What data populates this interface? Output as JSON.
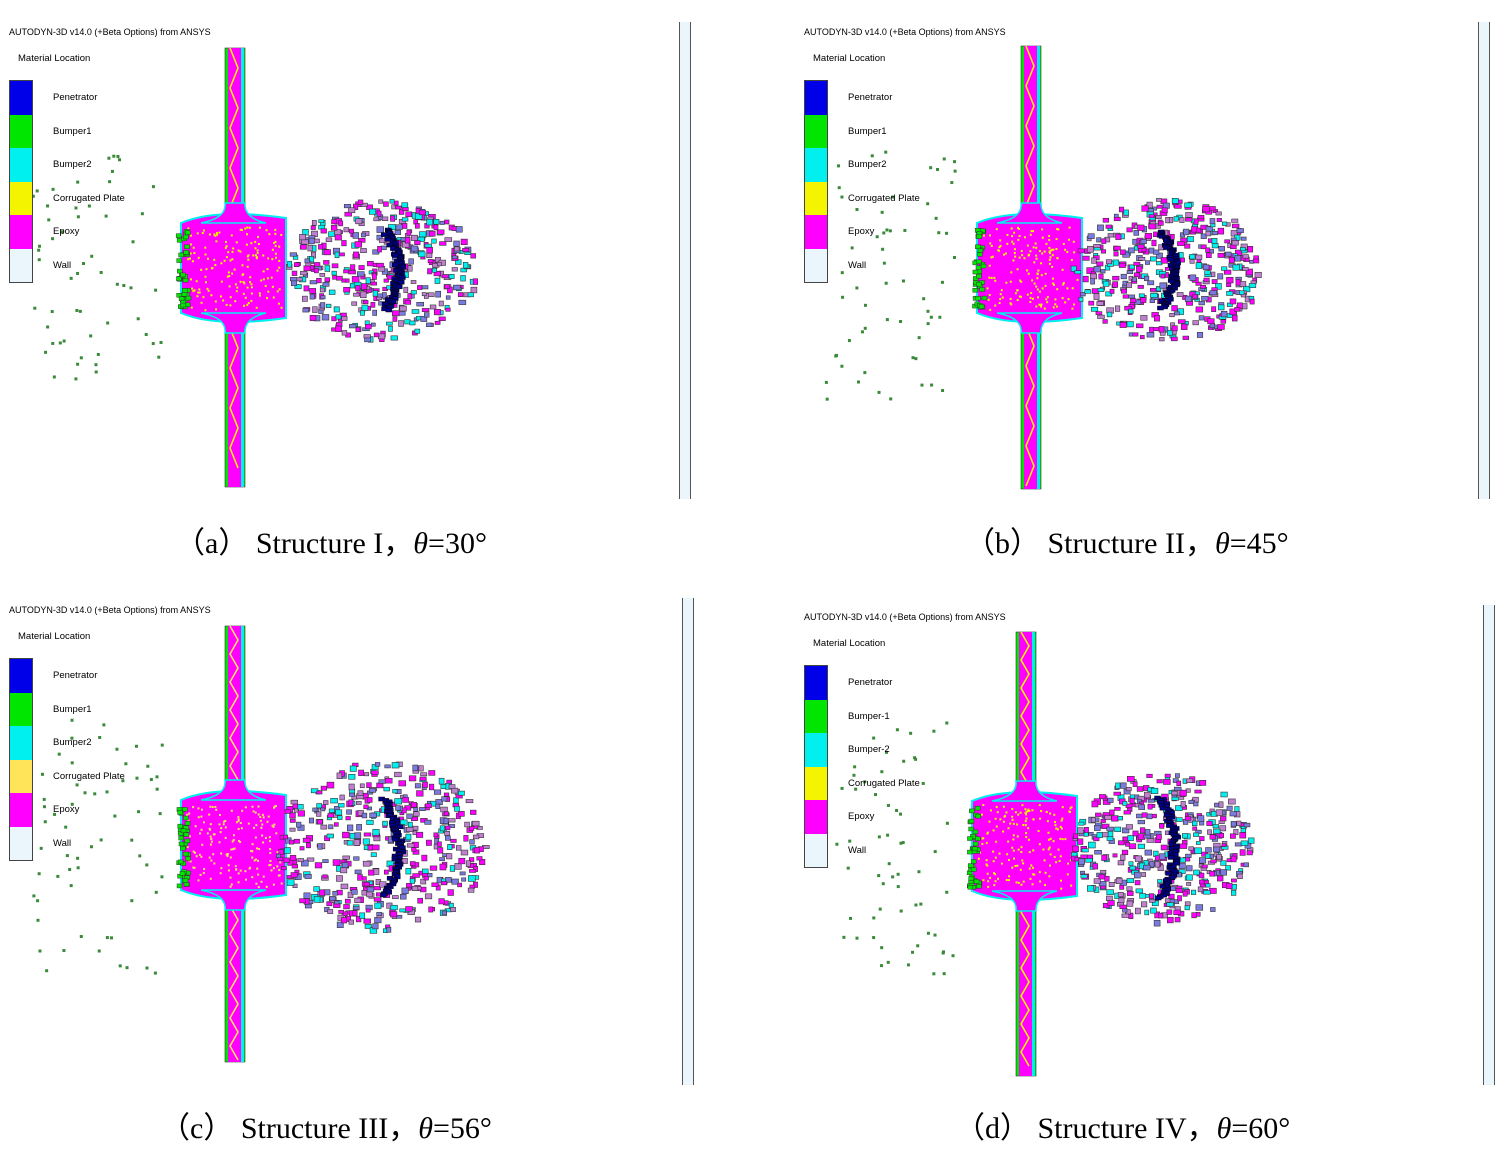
{
  "colors": {
    "penetrator": "#0000e8",
    "bumper1": "#00e600",
    "bumper2": "#00f0f0",
    "corrugated": "#f4f400",
    "corrugated_c": "#ffe45a",
    "epoxy": "#ff00ff",
    "wall": "#eaf6fb"
  },
  "panels": [
    {
      "id": "a",
      "sim_title": "AUTODYN-3D v14.0 (+Beta Options) from ANSYS",
      "legend_title": "Material Location",
      "legend": [
        {
          "label": "Penetrator",
          "color": "penetrator"
        },
        {
          "label": "Bumper1",
          "color": "bumper1"
        },
        {
          "label": "Bumper2",
          "color": "bumper2"
        },
        {
          "label": "Corrugated Plate",
          "color": "corrugated"
        },
        {
          "label": "Epoxy",
          "color": "epoxy"
        },
        {
          "label": "Wall",
          "color": "wall"
        }
      ],
      "caption_prefix": "（a）  Structure I，",
      "caption_theta": "θ",
      "caption_value": "=30°"
    },
    {
      "id": "b",
      "sim_title": "AUTODYN-3D v14.0 (+Beta Options) from ANSYS",
      "legend_title": "Material Location",
      "legend": [
        {
          "label": "Penetrator",
          "color": "penetrator"
        },
        {
          "label": "Bumper1",
          "color": "bumper1"
        },
        {
          "label": "Bumper2",
          "color": "bumper2"
        },
        {
          "label": "Corrugated Plate",
          "color": "corrugated"
        },
        {
          "label": "Epoxy",
          "color": "epoxy"
        },
        {
          "label": "Wall",
          "color": "wall"
        }
      ],
      "caption_prefix": "（b）  Structure II，",
      "caption_theta": "θ",
      "caption_value": "=45°"
    },
    {
      "id": "c",
      "sim_title": "AUTODYN-3D v14.0 (+Beta Options) from ANSYS",
      "legend_title": "Material Location",
      "legend": [
        {
          "label": "Penetrator",
          "color": "penetrator"
        },
        {
          "label": "Bumper1",
          "color": "bumper1"
        },
        {
          "label": "Bumper2",
          "color": "bumper2"
        },
        {
          "label": "Corrugated Plate",
          "color": "corrugated_c"
        },
        {
          "label": "Epoxy",
          "color": "epoxy"
        },
        {
          "label": "Wall",
          "color": "wall"
        }
      ],
      "caption_prefix": "（c）  Structure III，",
      "caption_theta": "θ",
      "caption_value": "=56°"
    },
    {
      "id": "d",
      "sim_title": "AUTODYN-3D v14.0 (+Beta Options) from ANSYS",
      "legend_title": "Material Location",
      "legend": [
        {
          "label": "Penetrator",
          "color": "penetrator"
        },
        {
          "label": "Bumper-1",
          "color": "bumper1"
        },
        {
          "label": "Bumper-2",
          "color": "bumper2"
        },
        {
          "label": "Corrugated Plate",
          "color": "corrugated"
        },
        {
          "label": "Epoxy",
          "color": "epoxy"
        },
        {
          "label": "Wall",
          "color": "wall"
        }
      ],
      "caption_prefix": "（d）  Structure IV，",
      "caption_theta": "θ",
      "caption_value": "=60°"
    }
  ]
}
